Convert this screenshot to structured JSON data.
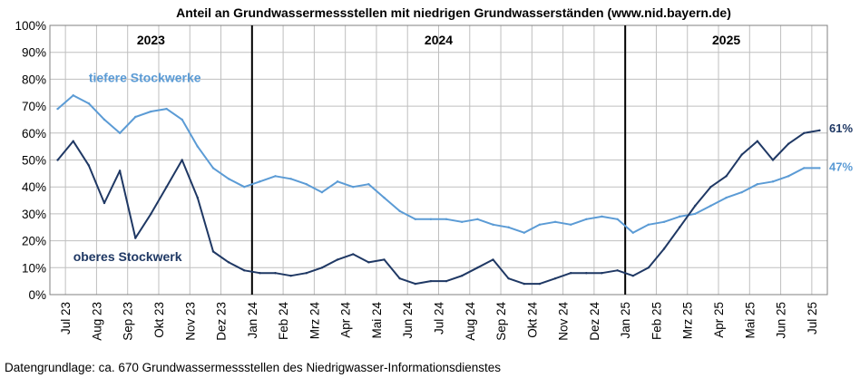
{
  "chart_data": {
    "type": "line",
    "title": "Anteil an Grundwassermessstellen mit niedrigen Grundwasserständen (www.nid.bayern.de)",
    "footnote": "Datengrundlage: ca. 670 Grundwassermessstellen des Niedrigwasser-Informationsdienstes",
    "xlabel": "",
    "ylabel": "",
    "ylim": [
      0,
      100
    ],
    "yticks": [
      "0%",
      "10%",
      "20%",
      "30%",
      "40%",
      "50%",
      "60%",
      "70%",
      "80%",
      "90%",
      "100%"
    ],
    "grid": true,
    "x_tick_labels": [
      "Jul 23",
      "Aug 23",
      "Sep 23",
      "Okt 23",
      "Nov 23",
      "Dez 23",
      "Jan 24",
      "Feb 24",
      "Mrz 24",
      "Apr 24",
      "Mai 24",
      "Jun 24",
      "Jul 24",
      "Aug 24",
      "Sep 24",
      "Okt 24",
      "Nov 24",
      "Dez 24",
      "Jan 25",
      "Feb 25",
      "Mrz 25",
      "Apr 25",
      "Mai 25",
      "Jun 25",
      "Jul 25"
    ],
    "year_labels": [
      "2023",
      "2024",
      "2025"
    ],
    "year_dividers": [
      "Jan 24",
      "Jan 25"
    ],
    "series": [
      {
        "name": "tiefere Stockwerke",
        "color": "#5b9bd5",
        "end_label": "47%",
        "x": [
          "Jul 23",
          "Jul 23b",
          "Aug 23",
          "Aug 23b",
          "Sep 23",
          "Sep 23b",
          "Okt 23",
          "Okt 23b",
          "Nov 23",
          "Nov 23b",
          "Dez 23",
          "Dez 23b",
          "Jan 24",
          "Jan 24b",
          "Feb 24",
          "Feb 24b",
          "Mrz 24",
          "Mrz 24b",
          "Apr 24",
          "Apr 24b",
          "Mai 24",
          "Mai 24b",
          "Jun 24",
          "Jun 24b",
          "Jul 24",
          "Jul 24b",
          "Aug 24",
          "Aug 24b",
          "Sep 24",
          "Sep 24b",
          "Okt 24",
          "Okt 24b",
          "Nov 24",
          "Nov 24b",
          "Dez 24",
          "Dez 24b",
          "Jan 25",
          "Jan 25b",
          "Feb 25",
          "Feb 25b",
          "Mrz 25",
          "Mrz 25b",
          "Apr 25",
          "Apr 25b",
          "Mai 25",
          "Mai 25b",
          "Jun 25",
          "Jun 25b",
          "Jul 25",
          "Jul 25b"
        ],
        "values": [
          69,
          74,
          71,
          65,
          60,
          66,
          68,
          69,
          65,
          55,
          47,
          43,
          40,
          42,
          44,
          43,
          41,
          38,
          42,
          40,
          41,
          36,
          31,
          28,
          28,
          28,
          27,
          28,
          26,
          25,
          23,
          26,
          27,
          26,
          28,
          29,
          28,
          23,
          26,
          27,
          29,
          30,
          33,
          36,
          38,
          41,
          42,
          44,
          47,
          47
        ]
      },
      {
        "name": "oberes Stockwerk",
        "color": "#1f3864",
        "end_label": "61%",
        "x": [
          "Jul 23",
          "Jul 23b",
          "Aug 23",
          "Aug 23b",
          "Sep 23",
          "Sep 23b",
          "Okt 23",
          "Okt 23b",
          "Nov 23",
          "Nov 23b",
          "Dez 23",
          "Dez 23b",
          "Jan 24",
          "Jan 24b",
          "Feb 24",
          "Feb 24b",
          "Mrz 24",
          "Mrz 24b",
          "Apr 24",
          "Apr 24b",
          "Mai 24",
          "Mai 24b",
          "Jun 24",
          "Jun 24b",
          "Jul 24",
          "Jul 24b",
          "Aug 24",
          "Aug 24b",
          "Sep 24",
          "Sep 24b",
          "Okt 24",
          "Okt 24b",
          "Nov 24",
          "Nov 24b",
          "Dez 24",
          "Dez 24b",
          "Jan 25",
          "Jan 25b",
          "Feb 25",
          "Feb 25b",
          "Mrz 25",
          "Mrz 25b",
          "Apr 25",
          "Apr 25b",
          "Mai 25",
          "Mai 25b",
          "Jun 25",
          "Jun 25b",
          "Jul 25",
          "Jul 25b"
        ],
        "values": [
          50,
          57,
          48,
          34,
          46,
          21,
          30,
          40,
          50,
          36,
          16,
          12,
          9,
          8,
          8,
          7,
          8,
          10,
          13,
          15,
          12,
          13,
          6,
          4,
          5,
          5,
          7,
          10,
          13,
          6,
          4,
          4,
          6,
          8,
          8,
          8,
          9,
          7,
          10,
          17,
          25,
          33,
          40,
          44,
          52,
          57,
          50,
          56,
          60,
          61
        ]
      }
    ]
  }
}
